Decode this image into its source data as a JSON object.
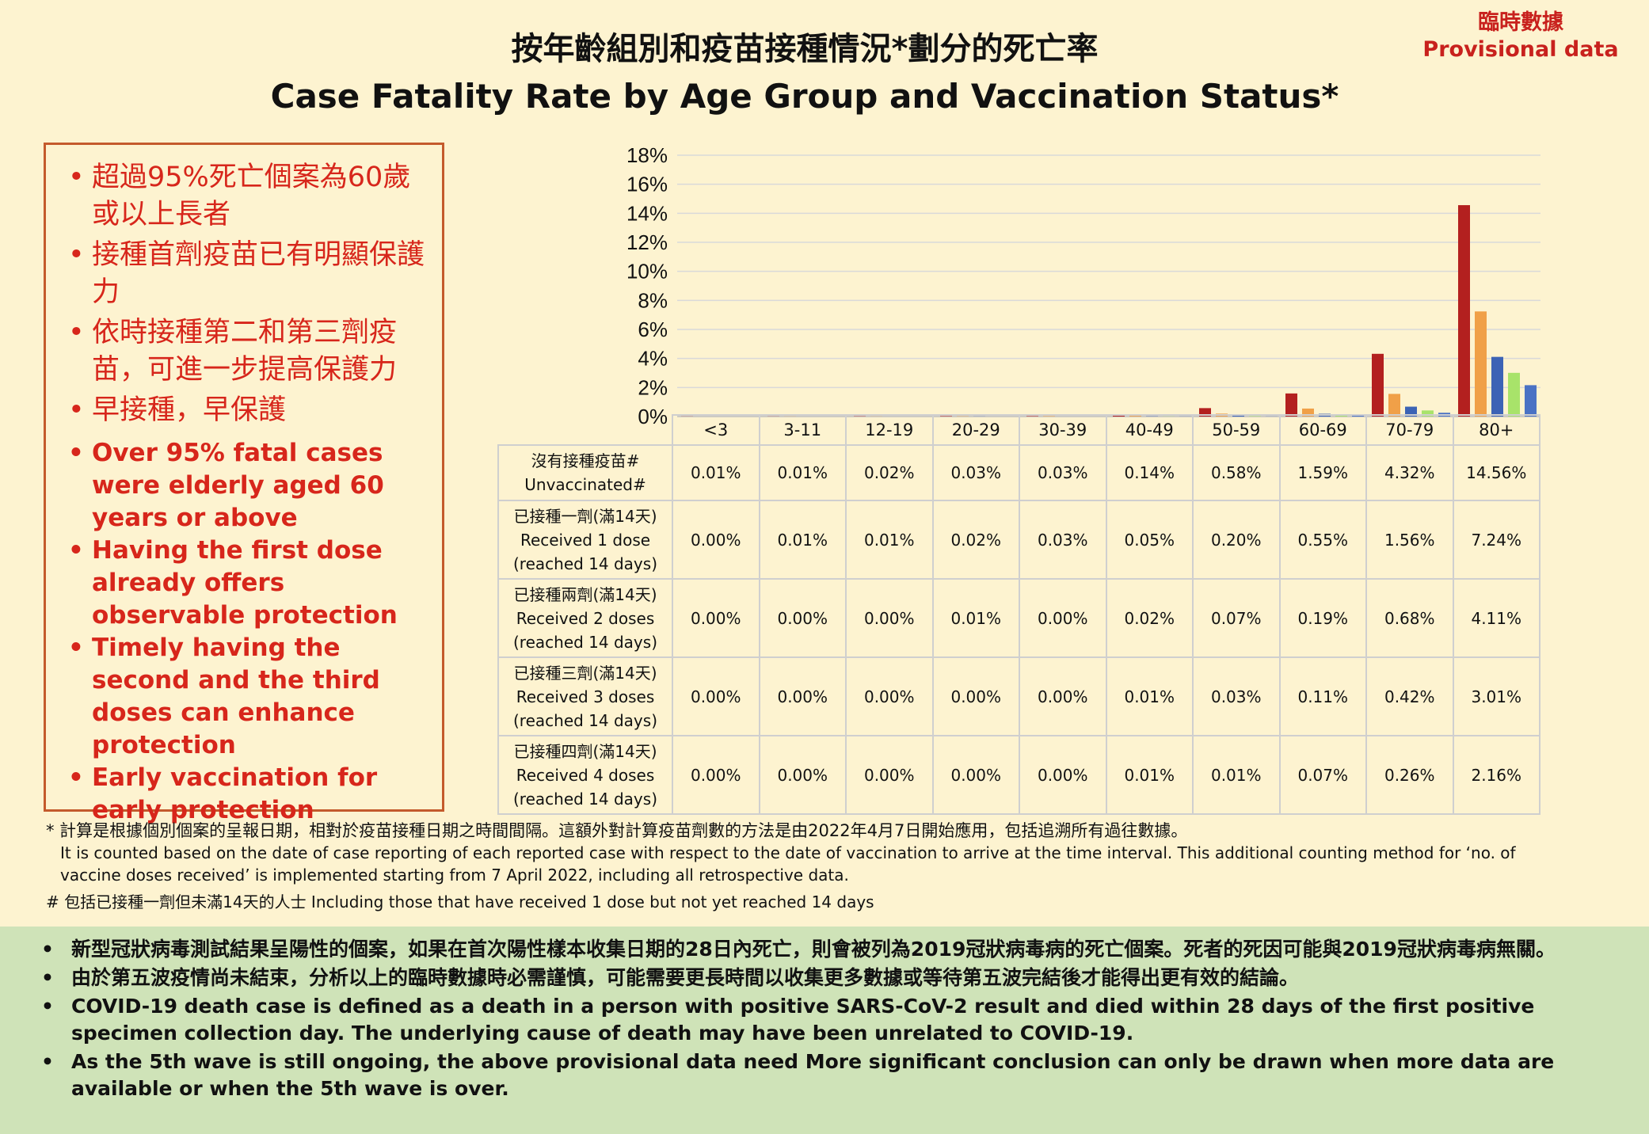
{
  "header": {
    "provisional_zh": "臨時數據",
    "provisional_en": "Provisional data",
    "title_zh": "按年齡組別和疫苗接種情況*劃分的死亡率",
    "title_en": "Case Fatality Rate by Age Group and Vaccination Status*"
  },
  "key_points": {
    "zh": [
      "超過95%死亡個案為60歲或以上長者",
      "接種首劑疫苗已有明顯保護力",
      "依時接種第二和第三劑疫苗，可進一步提高保護力",
      "早接種，早保護"
    ],
    "en": [
      "Over 95% fatal cases were elderly aged 60 years or above",
      "Having the first dose already offers observable protection",
      "Timely having the second and the third doses can enhance protection",
      "Early vaccination for early protection"
    ]
  },
  "chart_data": {
    "type": "bar",
    "categories": [
      "<3",
      "3-11",
      "12-19",
      "20-29",
      "30-39",
      "40-49",
      "50-59",
      "60-69",
      "70-79",
      "80+"
    ],
    "ylim": [
      0,
      18
    ],
    "y_ticks": [
      "0%",
      "2%",
      "4%",
      "6%",
      "8%",
      "10%",
      "12%",
      "14%",
      "16%",
      "18%"
    ],
    "grid": true,
    "series": [
      {
        "name_zh": "沒有接種疫苗#",
        "name_en": "Unvaccinated#",
        "color": "#b3201f",
        "values": [
          0.01,
          0.01,
          0.02,
          0.03,
          0.03,
          0.14,
          0.58,
          1.59,
          4.32,
          14.56
        ],
        "labels": [
          "0.01%",
          "0.01%",
          "0.02%",
          "0.03%",
          "0.03%",
          "0.14%",
          "0.58%",
          "1.59%",
          "4.32%",
          "14.56%"
        ]
      },
      {
        "name_zh": "已接種一劑(滿14天)",
        "name_en": "Received 1 dose",
        "name_note": "(reached 14 days)",
        "color": "#f0a048",
        "values": [
          0.0,
          0.01,
          0.01,
          0.02,
          0.03,
          0.05,
          0.2,
          0.55,
          1.56,
          7.24
        ],
        "labels": [
          "0.00%",
          "0.01%",
          "0.01%",
          "0.02%",
          "0.03%",
          "0.05%",
          "0.20%",
          "0.55%",
          "1.56%",
          "7.24%"
        ]
      },
      {
        "name_zh": "已接種兩劑(滿14天)",
        "name_en": "Received 2 doses",
        "name_note": "(reached 14 days)",
        "color": "#3c63b5",
        "values": [
          0.0,
          0.0,
          0.0,
          0.01,
          0.0,
          0.02,
          0.07,
          0.19,
          0.68,
          4.11
        ],
        "labels": [
          "0.00%",
          "0.00%",
          "0.00%",
          "0.01%",
          "0.00%",
          "0.02%",
          "0.07%",
          "0.19%",
          "0.68%",
          "4.11%"
        ]
      },
      {
        "name_zh": "已接種三劑(滿14天)",
        "name_en": "Received 3 doses",
        "name_note": "(reached 14 days)",
        "color": "#a8e36a",
        "values": [
          0.0,
          0.0,
          0.0,
          0.0,
          0.0,
          0.01,
          0.03,
          0.11,
          0.42,
          3.01
        ],
        "labels": [
          "0.00%",
          "0.00%",
          "0.00%",
          "0.00%",
          "0.00%",
          "0.01%",
          "0.03%",
          "0.11%",
          "0.42%",
          "3.01%"
        ]
      },
      {
        "name_zh": "已接種四劑(滿14天)",
        "name_en": "Received 4 doses",
        "name_note": "(reached 14 days)",
        "color": "#4a72c4",
        "values": [
          0.0,
          0.0,
          0.0,
          0.0,
          0.0,
          0.01,
          0.01,
          0.07,
          0.26,
          2.16
        ],
        "labels": [
          "0.00%",
          "0.00%",
          "0.00%",
          "0.00%",
          "0.00%",
          "0.01%",
          "0.01%",
          "0.07%",
          "0.26%",
          "2.16%"
        ]
      }
    ]
  },
  "footnotes": {
    "star_zh": "* 計算是根據個別個案的呈報日期，相對於疫苗接種日期之時間間隔。這額外對計算疫苗劑數的方法是由2022年4月7日開始應用，包括追溯所有過往數據。",
    "star_en": "It is counted based on the date of case reporting of each reported case with respect to the date of vaccination to arrive at the time interval. This additional counting method for ‘no. of vaccine doses received’ is implemented starting from 7 April 2022, including all retrospective data.",
    "hash_note": "# 包括已接種一劑但未滿14天的人士 Including those that have received 1 dose but not yet reached 14 days"
  },
  "bottom_notes": [
    "新型冠狀病毒測試結果呈陽性的個案，如果在首次陽性樣本收集日期的28日內死亡，則會被列為2019冠狀病毒病的死亡個案。死者的死因可能與2019冠狀病毒病無關。",
    "由於第五波疫情尚未結束，分析以上的臨時數據時必需謹慎，可能需要更長時間以收集更多數據或等待第五波完結後才能得出更有效的結論。",
    "COVID-19 death case is defined as a death in a person with positive SARS-CoV-2 result and died within 28 days of the first positive specimen collection day. The underlying cause of death may have been unrelated to COVID-19.",
    "As the 5th wave is still ongoing, the above provisional data need More significant conclusion can only be drawn when more data are available or when the 5th wave is over."
  ]
}
